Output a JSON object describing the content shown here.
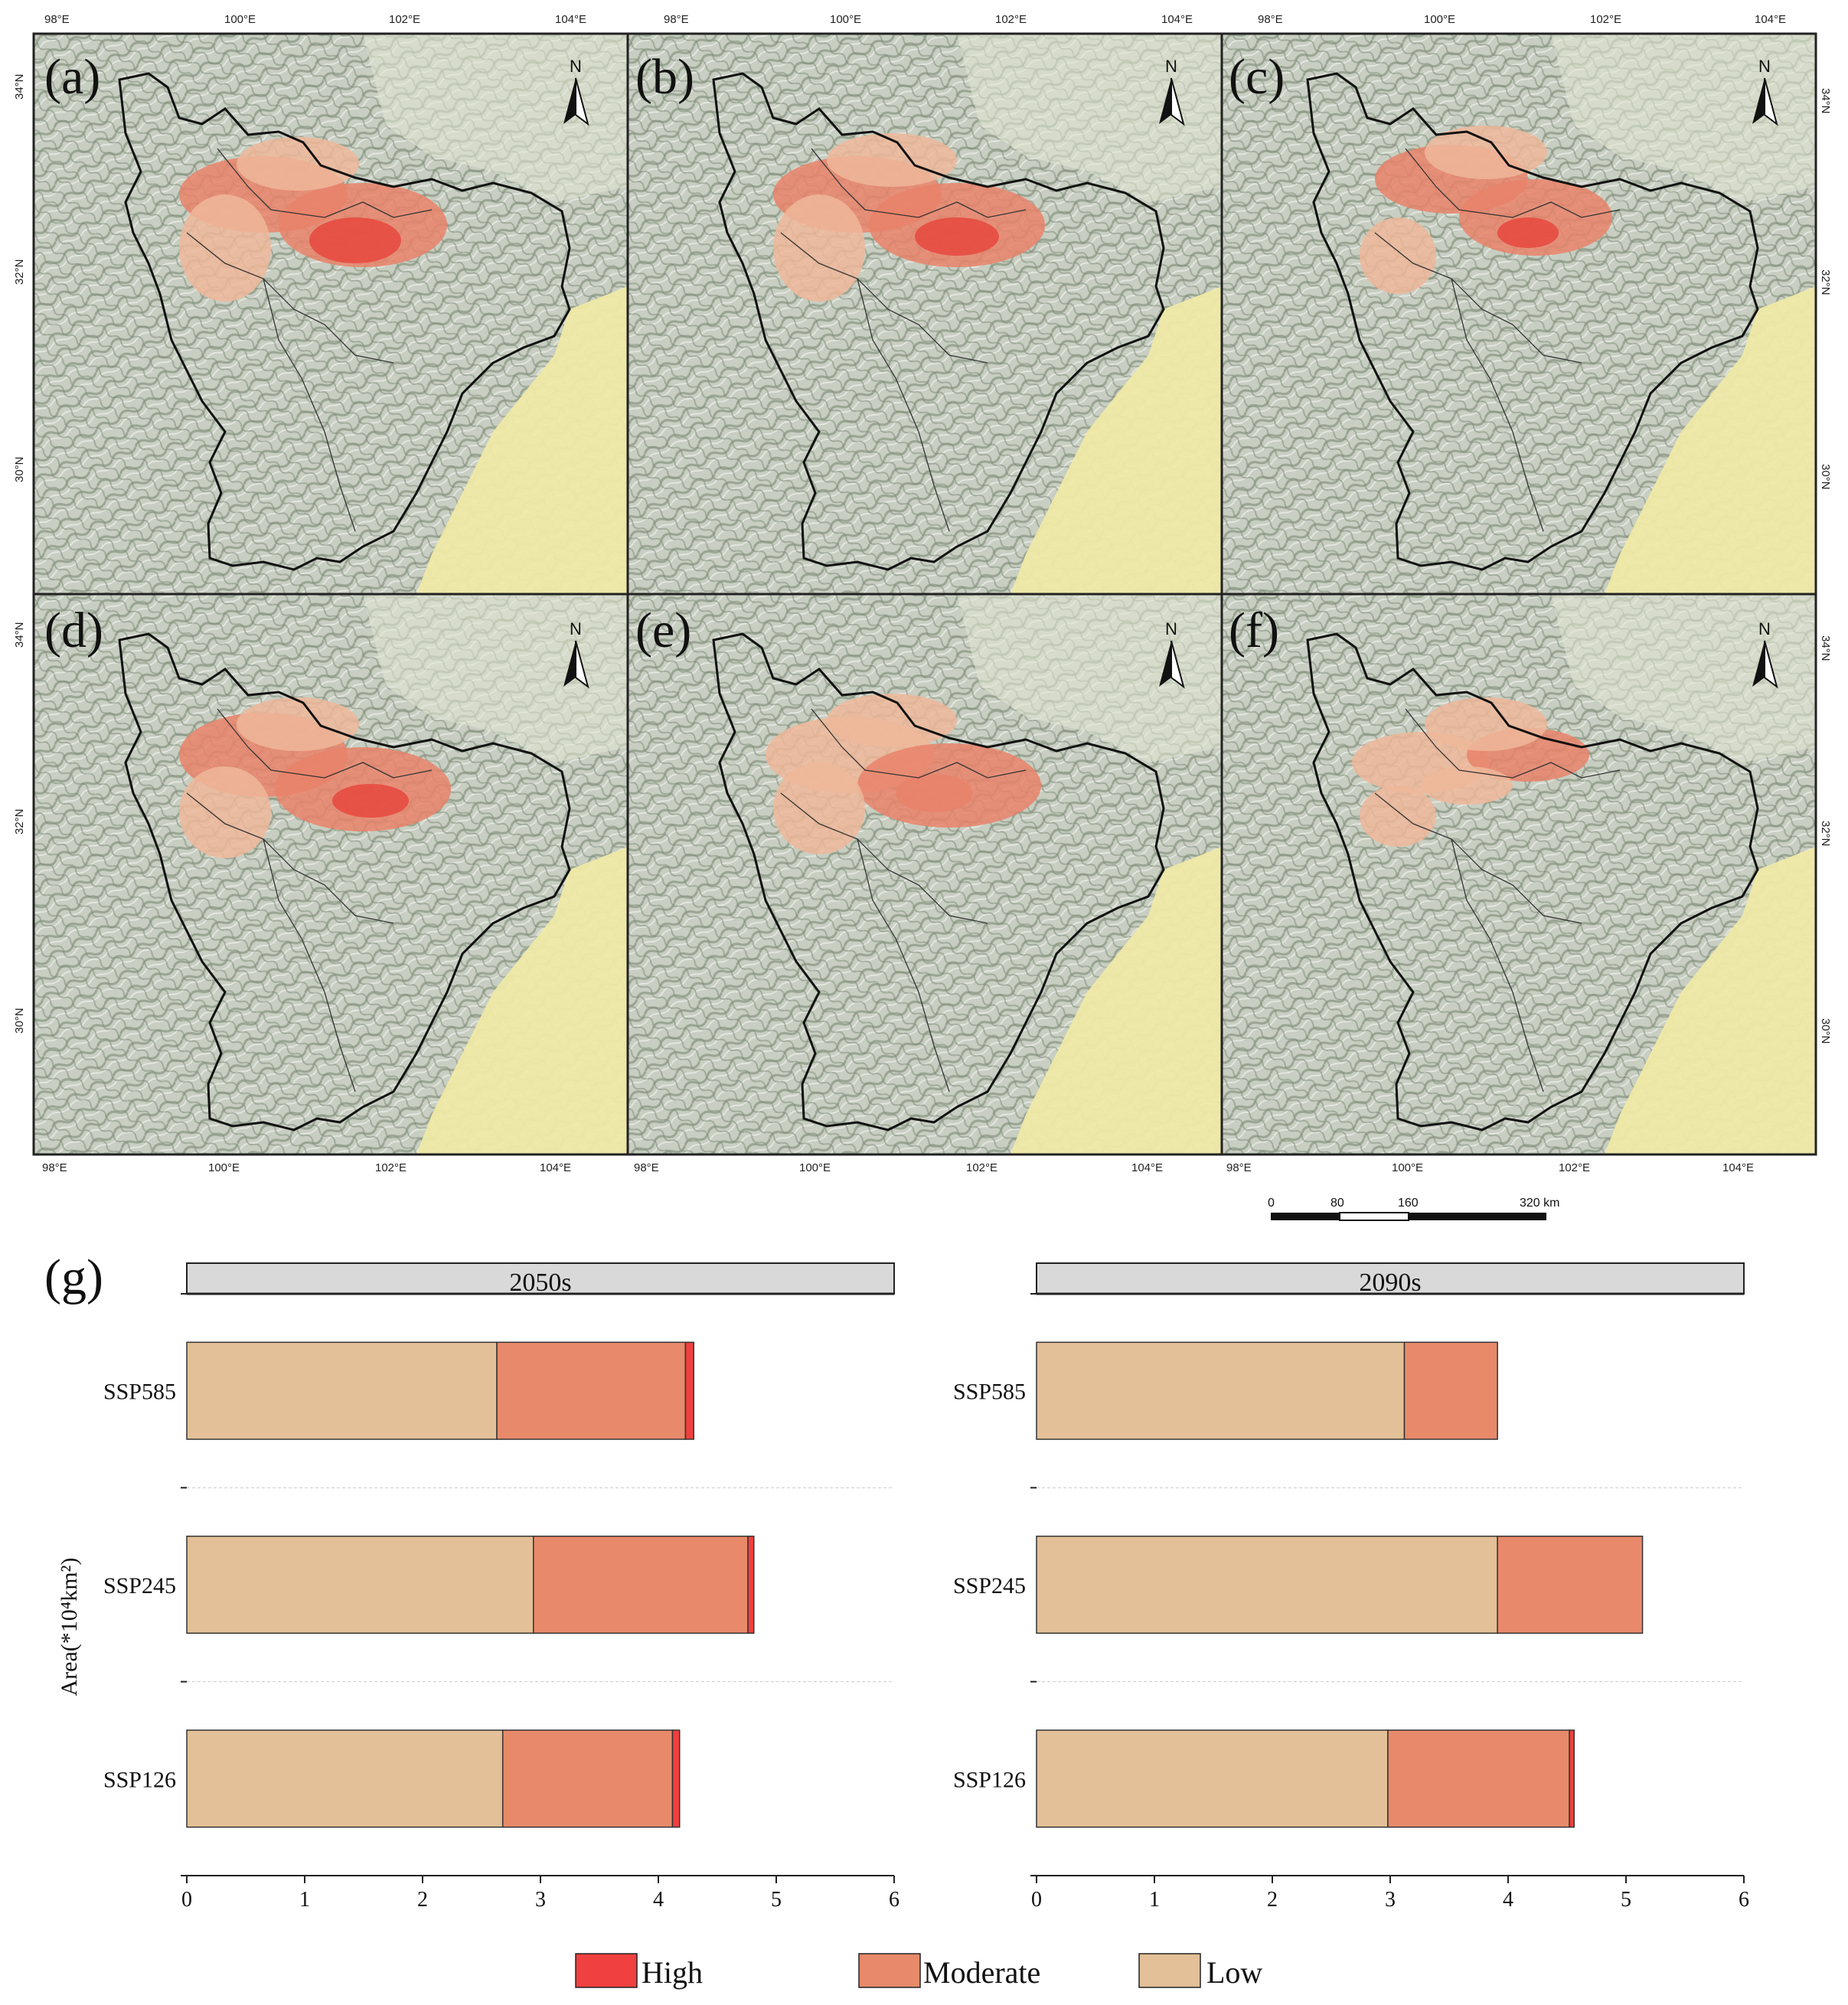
{
  "figure": {
    "maps": {
      "panels": [
        {
          "label": "(a)"
        },
        {
          "label": "(b)"
        },
        {
          "label": "(c)"
        },
        {
          "label": "(d)"
        },
        {
          "label": "(e)"
        },
        {
          "label": "(f)"
        }
      ],
      "lon_ticks": [
        "98°E",
        "100°E",
        "102°E",
        "104°E"
      ],
      "lat_ticks": [
        "34°N",
        "32°N",
        "30°N"
      ],
      "north_label": "N",
      "scale_bar": {
        "labels": [
          "0",
          "80",
          "160",
          "320 km"
        ]
      },
      "colors": {
        "terrain": "#c9cfc3",
        "terrain_dark": "#8e9a86",
        "plain": "#efe9a7",
        "boundary": "#111111",
        "high": "#e8483e",
        "moderate": "#e9826a",
        "low": "#eeb79a"
      }
    }
  },
  "chart_data": [
    {
      "type": "bar",
      "orientation": "horizontal",
      "stacked": true,
      "panel_label": "(g)",
      "facet_title": "2050s",
      "categories": [
        "SSP585",
        "SSP245",
        "SSP126"
      ],
      "series": [
        {
          "name": "Low",
          "color": "#e3c097",
          "values": [
            2.63,
            2.94,
            2.68
          ]
        },
        {
          "name": "Moderate",
          "color": "#e88a6a",
          "values": [
            1.6,
            1.82,
            1.44
          ]
        },
        {
          "name": "High",
          "color": "#f0403f",
          "values": [
            0.07,
            0.05,
            0.06
          ]
        }
      ],
      "xlim": [
        0,
        6
      ],
      "xticks": [
        "0",
        "1",
        "2",
        "3",
        "4",
        "5",
        "6"
      ],
      "ylabel": "Area(*10⁴km²)"
    },
    {
      "type": "bar",
      "orientation": "horizontal",
      "stacked": true,
      "facet_title": "2090s",
      "categories": [
        "SSP585",
        "SSP245",
        "SSP126"
      ],
      "series": [
        {
          "name": "Low",
          "color": "#e3c097",
          "values": [
            3.12,
            3.91,
            2.98
          ]
        },
        {
          "name": "Moderate",
          "color": "#e88a6a",
          "values": [
            0.79,
            1.23,
            1.54
          ]
        },
        {
          "name": "High",
          "color": "#f0403f",
          "values": [
            0.0,
            0.0,
            0.04
          ]
        }
      ],
      "xlim": [
        0,
        6
      ],
      "xticks": [
        "0",
        "1",
        "2",
        "3",
        "4",
        "5",
        "6"
      ]
    }
  ],
  "legend": {
    "items": [
      {
        "name": "High",
        "color": "#f0403f"
      },
      {
        "name": "Moderate",
        "color": "#e88a6a"
      },
      {
        "name": "Low",
        "color": "#e3c097"
      }
    ]
  }
}
